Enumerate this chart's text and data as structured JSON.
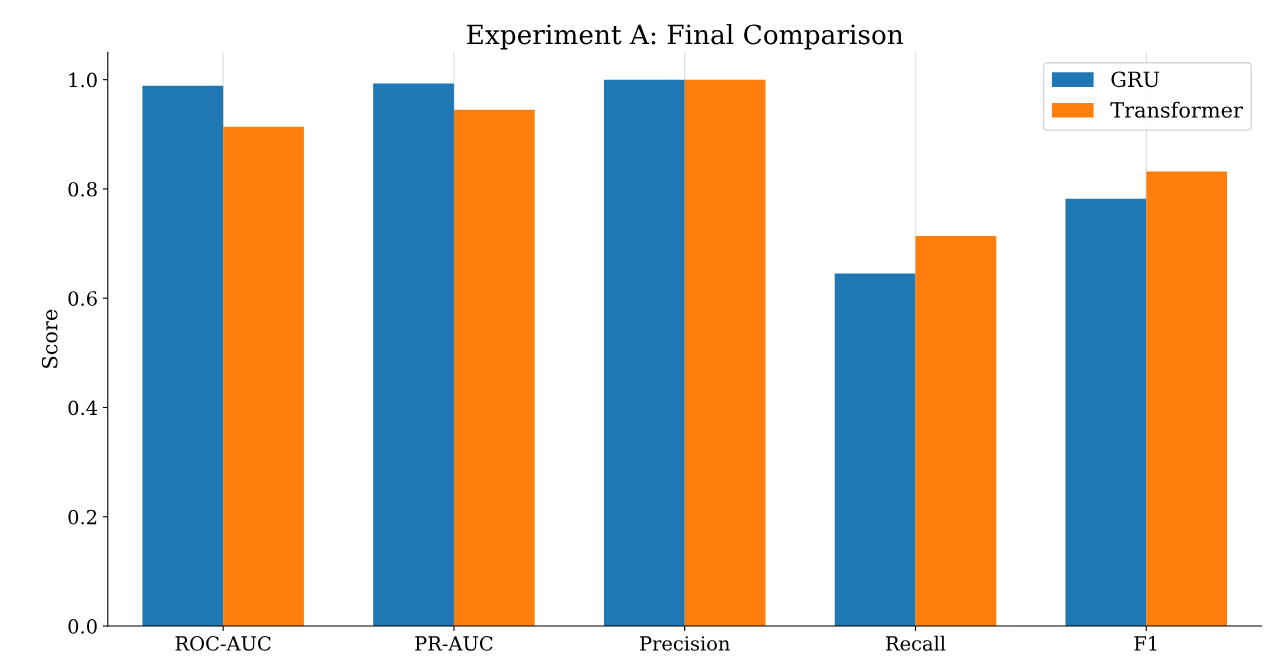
{
  "chart_data": {
    "type": "bar",
    "title": "Experiment A: Final Comparison",
    "ylabel": "Score",
    "categories": [
      "ROC-AUC",
      "PR-AUC",
      "Precision",
      "Recall",
      "F1"
    ],
    "series": [
      {
        "name": "GRU",
        "color": "#1f77b4",
        "values": [
          0.989,
          0.993,
          1.0,
          0.645,
          0.782
        ]
      },
      {
        "name": "Transformer",
        "color": "#ff7f0e",
        "values": [
          0.914,
          0.945,
          1.0,
          0.714,
          0.832
        ]
      }
    ],
    "ylim": [
      0,
      1.05
    ],
    "yticks": [
      {
        "value": 0,
        "label": "0.0"
      },
      {
        "value": 0.2,
        "label": "0.2"
      },
      {
        "value": 0.4,
        "label": "0.4"
      },
      {
        "value": 0.6,
        "label": "0.6"
      },
      {
        "value": 0.8,
        "label": "0.8"
      },
      {
        "value": 1.0,
        "label": "1.0"
      }
    ],
    "grid": "x",
    "legend": "top right"
  }
}
